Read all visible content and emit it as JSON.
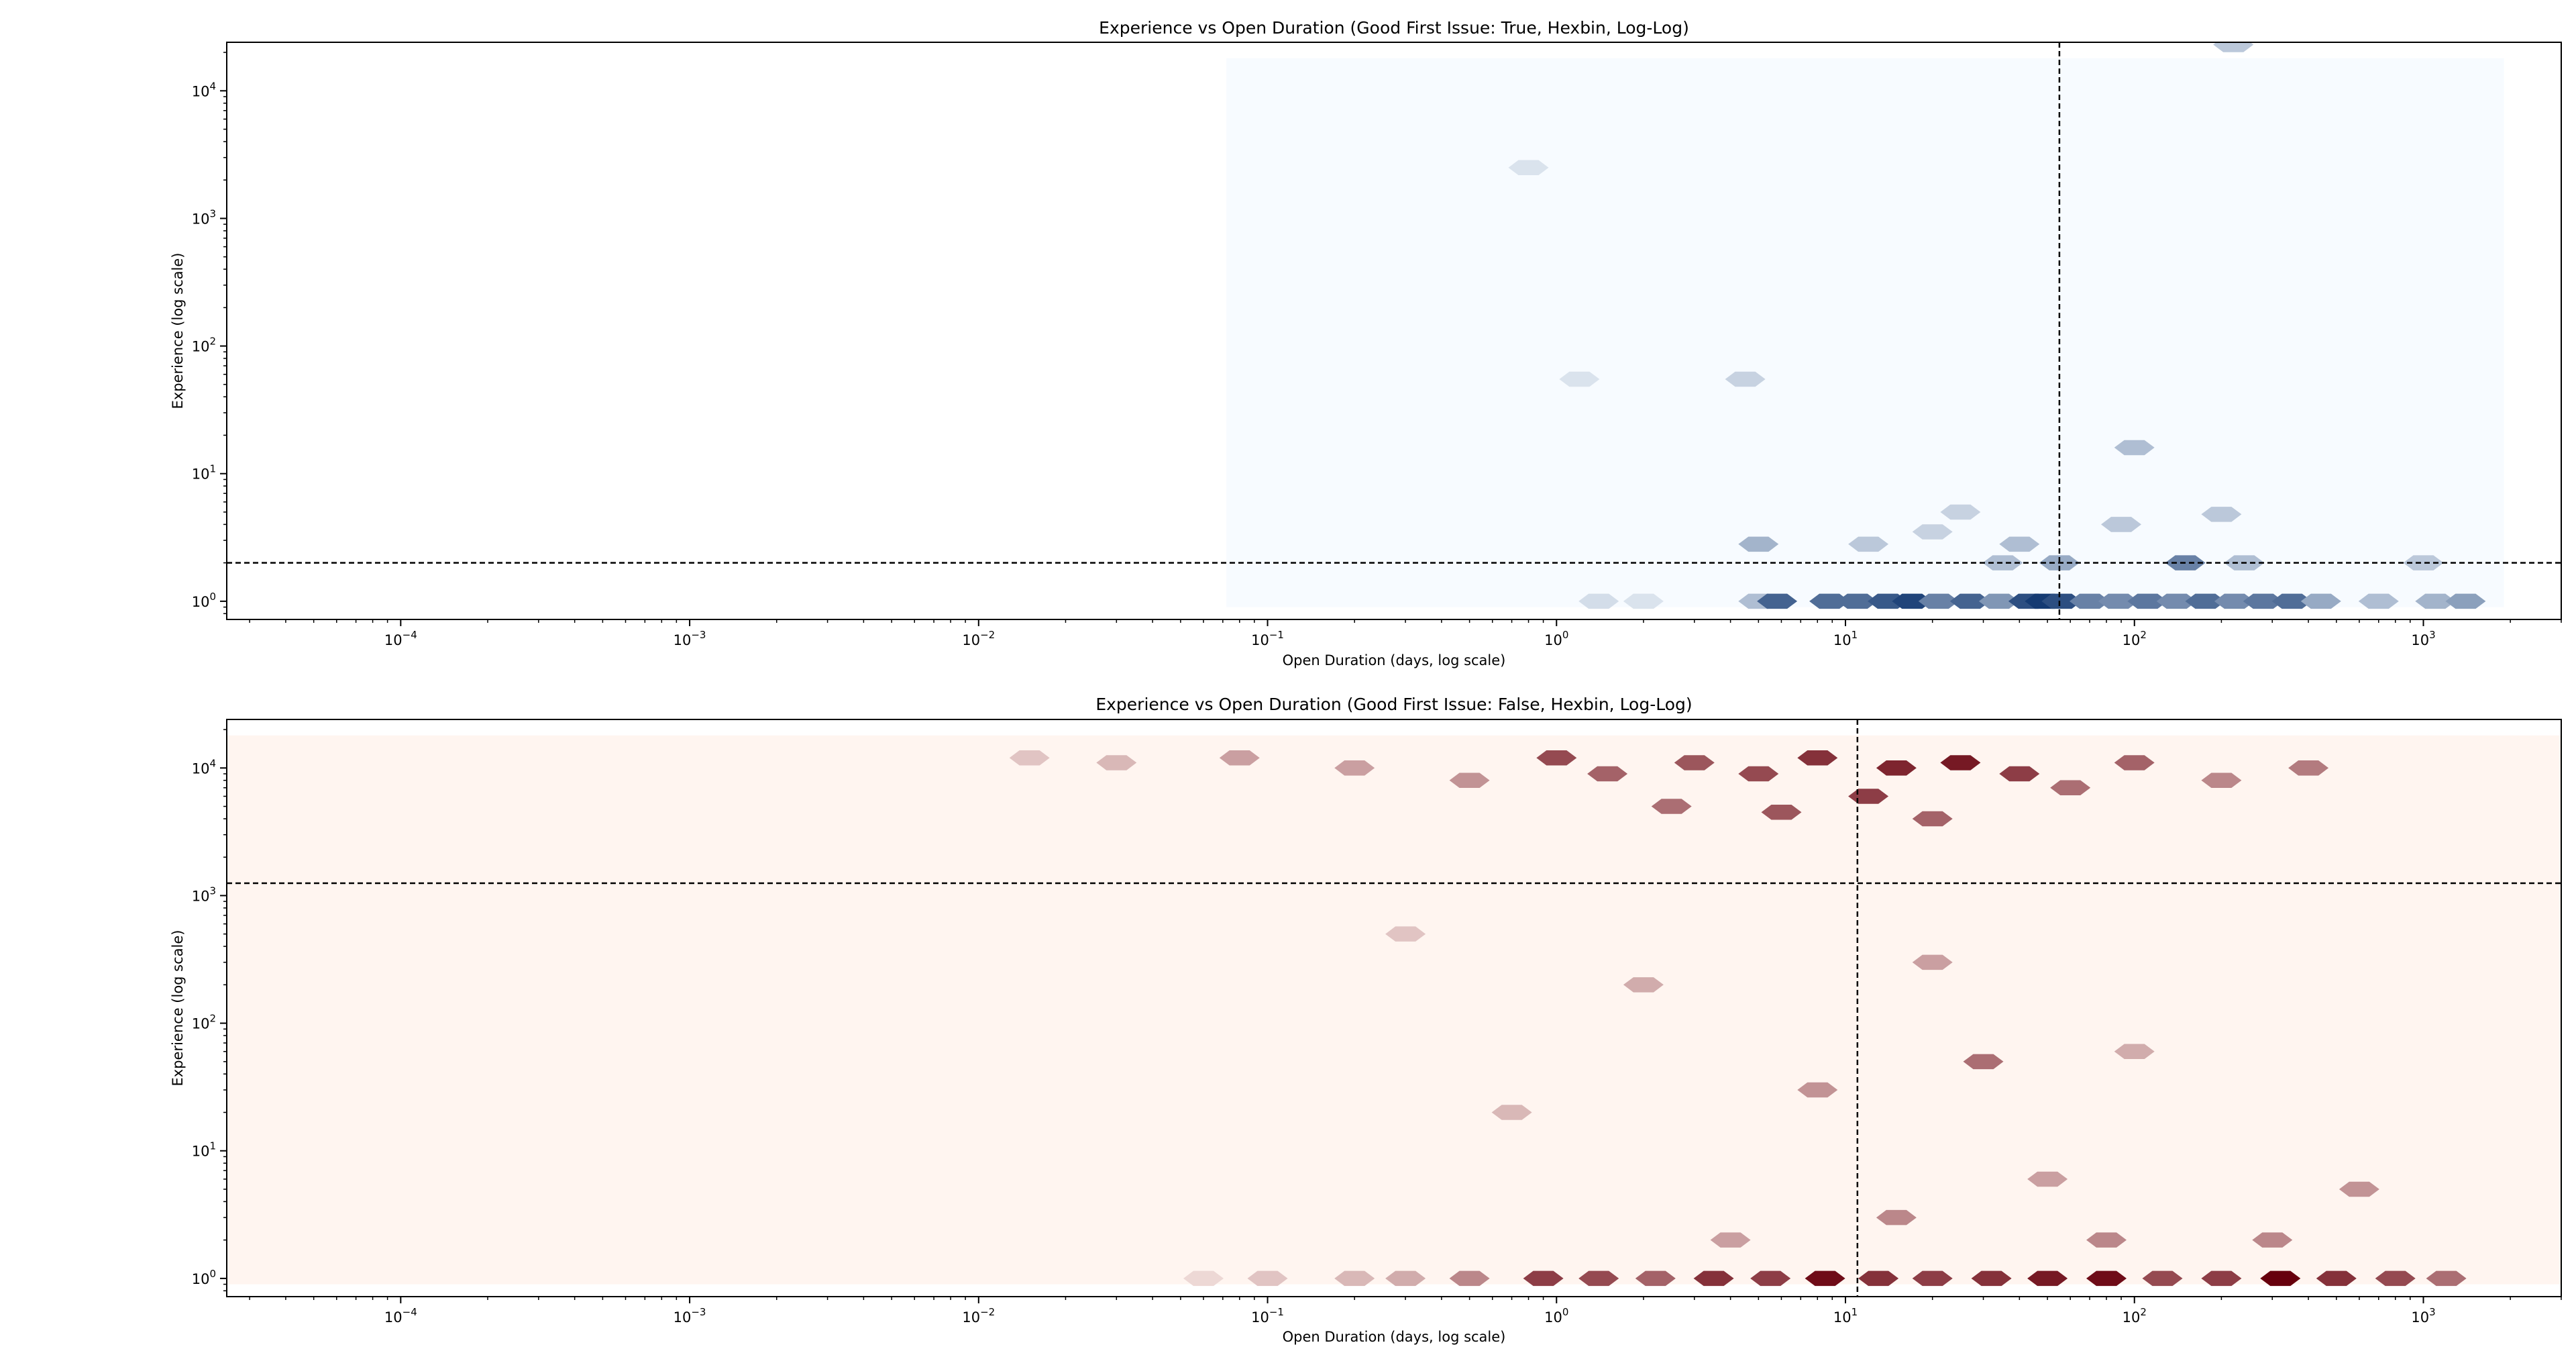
{
  "chart_data": [
    {
      "type": "heatmap",
      "subtype": "hexbin",
      "title": "Experience vs Open Duration (Good First Issue: True, Hexbin, Log-Log)",
      "xlabel": "Open Duration (days, log scale)",
      "ylabel": "Experience (log scale)",
      "x_scale": "log",
      "y_scale": "log",
      "xlim": [
        2.5e-05,
        3000
      ],
      "ylim": [
        0.72,
        24000
      ],
      "x_ticks": [
        {
          "value": 0.0001,
          "mant": "10",
          "exp": "−4"
        },
        {
          "value": 0.001,
          "mant": "10",
          "exp": "−3"
        },
        {
          "value": 0.01,
          "mant": "10",
          "exp": "−2"
        },
        {
          "value": 0.1,
          "mant": "10",
          "exp": "−1"
        },
        {
          "value": 1,
          "mant": "10",
          "exp": "0"
        },
        {
          "value": 10,
          "mant": "10",
          "exp": "1"
        },
        {
          "value": 100,
          "mant": "10",
          "exp": "2"
        },
        {
          "value": 1000,
          "mant": "10",
          "exp": "3"
        }
      ],
      "y_ticks": [
        {
          "value": 1,
          "mant": "10",
          "exp": "0"
        },
        {
          "value": 10,
          "mant": "10",
          "exp": "1"
        },
        {
          "value": 100,
          "mant": "10",
          "exp": "2"
        },
        {
          "value": 1000,
          "mant": "10",
          "exp": "3"
        },
        {
          "value": 10000,
          "mant": "10",
          "exp": "4"
        }
      ],
      "colormap": "Blues",
      "colors": {
        "low": "#f7fbff",
        "high": "#08306b"
      },
      "median_x": 55,
      "median_y": 2,
      "hex_extent": {
        "x": [
          0.072,
          1900
        ],
        "y": [
          0.9,
          18000
        ]
      },
      "cells": [
        {
          "x": 1.4,
          "y": 1,
          "c": 0.15
        },
        {
          "x": 2.0,
          "y": 1,
          "c": 0.12
        },
        {
          "x": 5.0,
          "y": 1,
          "c": 0.3
        },
        {
          "x": 5.8,
          "y": 1,
          "c": 0.75
        },
        {
          "x": 8.8,
          "y": 1,
          "c": 0.7
        },
        {
          "x": 11,
          "y": 1,
          "c": 0.7
        },
        {
          "x": 14,
          "y": 1,
          "c": 0.8
        },
        {
          "x": 17,
          "y": 1,
          "c": 0.9
        },
        {
          "x": 21,
          "y": 1,
          "c": 0.6
        },
        {
          "x": 27,
          "y": 1,
          "c": 0.75
        },
        {
          "x": 34,
          "y": 1,
          "c": 0.5
        },
        {
          "x": 43,
          "y": 1,
          "c": 0.85
        },
        {
          "x": 49,
          "y": 1,
          "c": 0.95
        },
        {
          "x": 56,
          "y": 1,
          "c": 0.85
        },
        {
          "x": 70,
          "y": 1,
          "c": 0.6
        },
        {
          "x": 88,
          "y": 1,
          "c": 0.55
        },
        {
          "x": 111,
          "y": 1,
          "c": 0.65
        },
        {
          "x": 140,
          "y": 1,
          "c": 0.55
        },
        {
          "x": 176,
          "y": 1,
          "c": 0.7
        },
        {
          "x": 222,
          "y": 1,
          "c": 0.55
        },
        {
          "x": 279,
          "y": 1,
          "c": 0.65
        },
        {
          "x": 351,
          "y": 1,
          "c": 0.7
        },
        {
          "x": 442,
          "y": 1,
          "c": 0.4
        },
        {
          "x": 700,
          "y": 1,
          "c": 0.3
        },
        {
          "x": 1100,
          "y": 1,
          "c": 0.35
        },
        {
          "x": 1400,
          "y": 1,
          "c": 0.45
        },
        {
          "x": 150,
          "y": 2,
          "c": 0.6
        },
        {
          "x": 55,
          "y": 2,
          "c": 0.4
        },
        {
          "x": 35,
          "y": 2,
          "c": 0.3
        },
        {
          "x": 240,
          "y": 2,
          "c": 0.3
        },
        {
          "x": 1000,
          "y": 2,
          "c": 0.25
        },
        {
          "x": 5.0,
          "y": 2.8,
          "c": 0.35
        },
        {
          "x": 12,
          "y": 2.8,
          "c": 0.25
        },
        {
          "x": 40,
          "y": 2.8,
          "c": 0.3
        },
        {
          "x": 20,
          "y": 3.5,
          "c": 0.2
        },
        {
          "x": 90,
          "y": 4,
          "c": 0.25
        },
        {
          "x": 200,
          "y": 4.8,
          "c": 0.25
        },
        {
          "x": 25,
          "y": 5,
          "c": 0.2
        },
        {
          "x": 100,
          "y": 16,
          "c": 0.3
        },
        {
          "x": 4.5,
          "y": 55,
          "c": 0.2
        },
        {
          "x": 220,
          "y": 23000,
          "c": 0.25
        },
        {
          "x": 1.2,
          "y": 55,
          "c": 0.12
        },
        {
          "x": 0.8,
          "y": 2500,
          "c": 0.12
        }
      ]
    },
    {
      "type": "heatmap",
      "subtype": "hexbin",
      "title": "Experience vs Open Duration (Good First Issue: False, Hexbin, Log-Log)",
      "xlabel": "Open Duration (days, log scale)",
      "ylabel": "Experience (log scale)",
      "x_scale": "log",
      "y_scale": "log",
      "xlim": [
        2.5e-05,
        3000
      ],
      "ylim": [
        0.72,
        24000
      ],
      "x_ticks": [
        {
          "value": 0.0001,
          "mant": "10",
          "exp": "−4"
        },
        {
          "value": 0.001,
          "mant": "10",
          "exp": "−3"
        },
        {
          "value": 0.01,
          "mant": "10",
          "exp": "−2"
        },
        {
          "value": 0.1,
          "mant": "10",
          "exp": "−1"
        },
        {
          "value": 1,
          "mant": "10",
          "exp": "0"
        },
        {
          "value": 10,
          "mant": "10",
          "exp": "1"
        },
        {
          "value": 100,
          "mant": "10",
          "exp": "2"
        },
        {
          "value": 1000,
          "mant": "10",
          "exp": "3"
        }
      ],
      "y_ticks": [
        {
          "value": 1,
          "mant": "10",
          "exp": "0"
        },
        {
          "value": 10,
          "mant": "10",
          "exp": "1"
        },
        {
          "value": 100,
          "mant": "10",
          "exp": "2"
        },
        {
          "value": 1000,
          "mant": "10",
          "exp": "3"
        },
        {
          "value": 10000,
          "mant": "10",
          "exp": "4"
        }
      ],
      "colormap": "Reds",
      "colors": {
        "low": "#fff5f0",
        "high": "#67000d"
      },
      "median_x": 11,
      "median_y": 1250,
      "hex_extent": {
        "x": [
          2.5e-05,
          3000
        ],
        "y": [
          0.9,
          18000
        ]
      },
      "cells": [
        {
          "x": 0.9,
          "y": 1,
          "c": 0.75
        },
        {
          "x": 1.4,
          "y": 1,
          "c": 0.7
        },
        {
          "x": 2.2,
          "y": 1,
          "c": 0.6
        },
        {
          "x": 3.5,
          "y": 1,
          "c": 0.8
        },
        {
          "x": 5.5,
          "y": 1,
          "c": 0.75
        },
        {
          "x": 8.5,
          "y": 1,
          "c": 0.95
        },
        {
          "x": 13,
          "y": 1,
          "c": 0.8
        },
        {
          "x": 20,
          "y": 1,
          "c": 0.75
        },
        {
          "x": 32,
          "y": 1,
          "c": 0.8
        },
        {
          "x": 50,
          "y": 1,
          "c": 0.9
        },
        {
          "x": 80,
          "y": 1,
          "c": 0.95
        },
        {
          "x": 125,
          "y": 1,
          "c": 0.7
        },
        {
          "x": 200,
          "y": 1,
          "c": 0.75
        },
        {
          "x": 320,
          "y": 1,
          "c": 1.0
        },
        {
          "x": 500,
          "y": 1,
          "c": 0.8
        },
        {
          "x": 800,
          "y": 1,
          "c": 0.7
        },
        {
          "x": 1200,
          "y": 1,
          "c": 0.55
        },
        {
          "x": 0.3,
          "y": 1,
          "c": 0.3
        },
        {
          "x": 0.5,
          "y": 1,
          "c": 0.45
        },
        {
          "x": 0.2,
          "y": 1,
          "c": 0.25
        },
        {
          "x": 0.1,
          "y": 1,
          "c": 0.2
        },
        {
          "x": 0.06,
          "y": 1,
          "c": 0.12
        },
        {
          "x": 15,
          "y": 10000,
          "c": 0.85
        },
        {
          "x": 25,
          "y": 11000,
          "c": 0.9
        },
        {
          "x": 8,
          "y": 12000,
          "c": 0.8
        },
        {
          "x": 40,
          "y": 9000,
          "c": 0.75
        },
        {
          "x": 5,
          "y": 9000,
          "c": 0.7
        },
        {
          "x": 3,
          "y": 11000,
          "c": 0.65
        },
        {
          "x": 1.5,
          "y": 9000,
          "c": 0.6
        },
        {
          "x": 1,
          "y": 12000,
          "c": 0.7
        },
        {
          "x": 12,
          "y": 6000,
          "c": 0.75
        },
        {
          "x": 6,
          "y": 4500,
          "c": 0.65
        },
        {
          "x": 20,
          "y": 4000,
          "c": 0.6
        },
        {
          "x": 60,
          "y": 7000,
          "c": 0.55
        },
        {
          "x": 100,
          "y": 11000,
          "c": 0.6
        },
        {
          "x": 200,
          "y": 8000,
          "c": 0.45
        },
        {
          "x": 400,
          "y": 10000,
          "c": 0.5
        },
        {
          "x": 2.5,
          "y": 5000,
          "c": 0.55
        },
        {
          "x": 0.5,
          "y": 8000,
          "c": 0.4
        },
        {
          "x": 0.2,
          "y": 10000,
          "c": 0.35
        },
        {
          "x": 0.08,
          "y": 12000,
          "c": 0.35
        },
        {
          "x": 0.03,
          "y": 11000,
          "c": 0.25
        },
        {
          "x": 0.015,
          "y": 12000,
          "c": 0.2
        },
        {
          "x": 30,
          "y": 50,
          "c": 0.55
        },
        {
          "x": 8,
          "y": 30,
          "c": 0.4
        },
        {
          "x": 15,
          "y": 3,
          "c": 0.45
        },
        {
          "x": 4,
          "y": 2,
          "c": 0.35
        },
        {
          "x": 80,
          "y": 2,
          "c": 0.45
        },
        {
          "x": 300,
          "y": 2,
          "c": 0.45
        },
        {
          "x": 600,
          "y": 5,
          "c": 0.4
        },
        {
          "x": 50,
          "y": 6,
          "c": 0.35
        },
        {
          "x": 20,
          "y": 300,
          "c": 0.35
        },
        {
          "x": 2,
          "y": 200,
          "c": 0.3
        },
        {
          "x": 100,
          "y": 60,
          "c": 0.3
        },
        {
          "x": 0.7,
          "y": 20,
          "c": 0.25
        },
        {
          "x": 0.3,
          "y": 500,
          "c": 0.2
        }
      ]
    }
  ]
}
